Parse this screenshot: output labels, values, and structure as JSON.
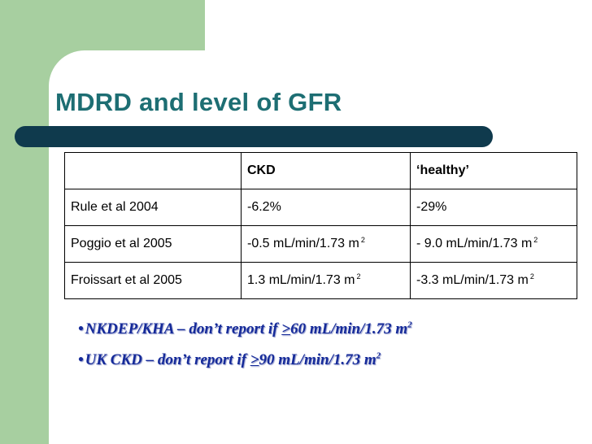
{
  "slide": {
    "title": "MDRD and level of GFR",
    "table": {
      "headers": [
        "",
        "CKD",
        "‘healthy’"
      ],
      "rows": [
        {
          "study": "Rule et al 2004",
          "ckd": "-6.2%",
          "healthy": "-29%"
        },
        {
          "study": "Poggio et al 2005",
          "ckd": "-0.5 mL/min/1.73 m",
          "ckd_sup": "2",
          "healthy": "- 9.0 mL/min/1.73 m",
          "healthy_sup": "2"
        },
        {
          "study": "Froissart et al 2005",
          "ckd": "1.3 mL/min/1.73 m",
          "ckd_sup": "2",
          "healthy": "-3.3 mL/min/1.73 m",
          "healthy_sup": "2"
        }
      ]
    },
    "bullets": [
      {
        "marker": "•",
        "pre": "NKDEP/KHA – don’t report if ",
        "sym": ">",
        "post": "60 mL/min/1.73 m",
        "sup": "2"
      },
      {
        "marker": "•",
        "pre": "UK CKD – don’t report if ",
        "sym": ">",
        "post": "90 mL/min/1.73 m",
        "sup": "2"
      }
    ]
  },
  "colors": {
    "green_band": "#a7cfa0",
    "title_text": "#1d6e73",
    "title_bar": "#0f3a4d",
    "bullet_text": "#152a99"
  }
}
